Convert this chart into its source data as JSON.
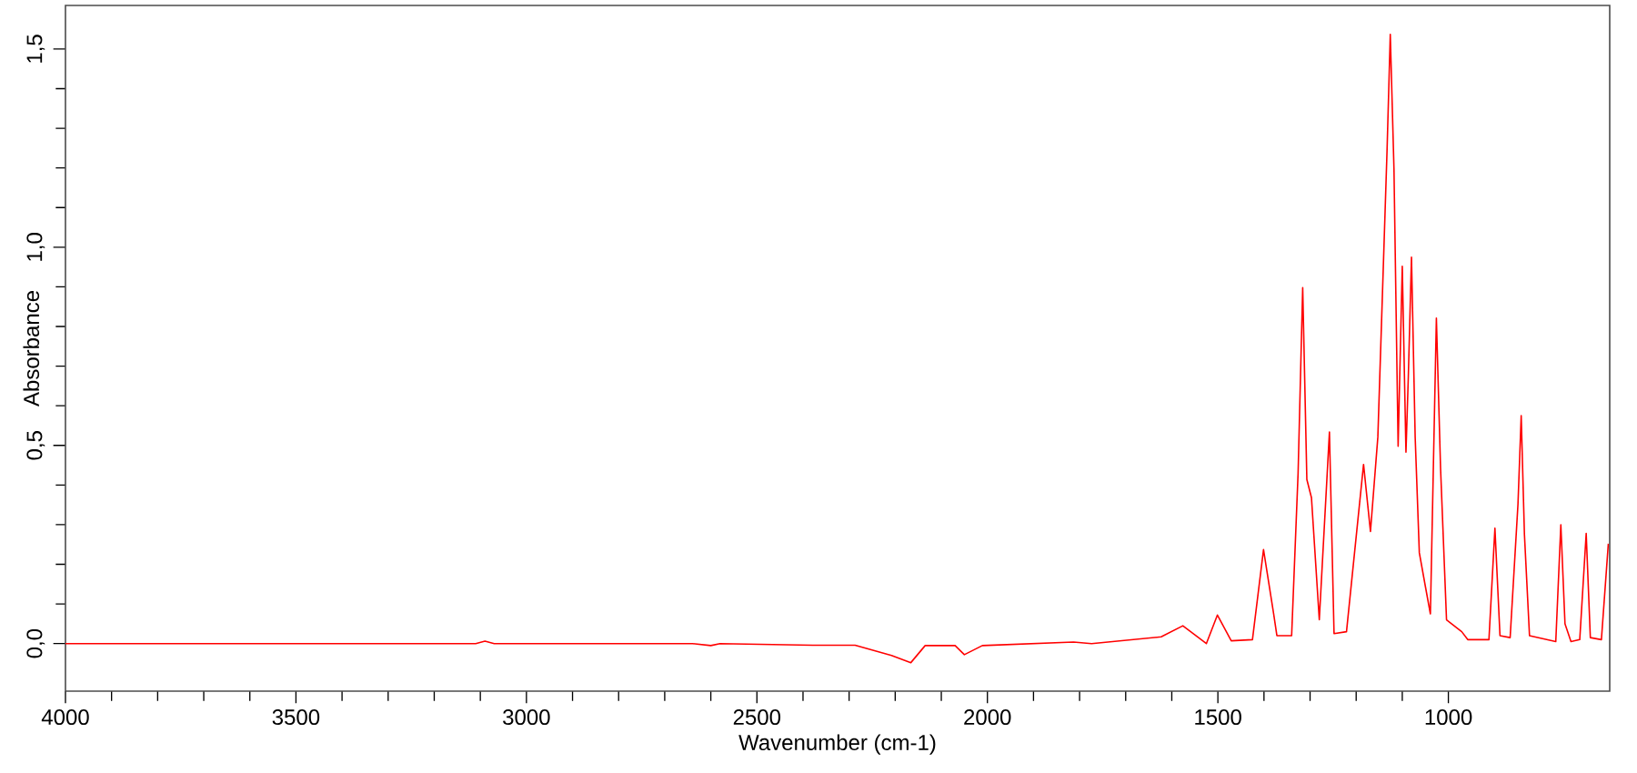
{
  "chart_data": {
    "type": "line",
    "xlabel": "Wavenumber (cm-1)",
    "ylabel": "Absorbance",
    "xlim": [
      4000,
      650
    ],
    "ylim": [
      -0.12,
      1.61
    ],
    "xticks": [
      4000,
      3500,
      3000,
      2500,
      2000,
      1500,
      1000
    ],
    "yticks": [
      {
        "value": 0,
        "label": "0,0"
      },
      {
        "value": 0.5,
        "label": "0,5"
      },
      {
        "value": 1.0,
        "label": "1,0"
      },
      {
        "value": 1.5,
        "label": "1,5"
      }
    ],
    "grid": false,
    "marker": "none",
    "line_style": "solid",
    "series": [
      {
        "color": "#ff0000",
        "x": [
          4000,
          3110,
          3090,
          3070,
          2640,
          2600,
          2580,
          2379,
          2287,
          2208,
          2166,
          2135,
          2070,
          2050,
          2011,
          1813,
          1774,
          1623,
          1576,
          1525,
          1501,
          1471,
          1425,
          1401,
          1379,
          1372,
          1340,
          1326,
          1316,
          1307,
          1297,
          1280,
          1258,
          1248,
          1221,
          1184,
          1169,
          1153,
          1133,
          1126,
          1118,
          1109,
          1100,
          1092,
          1087,
          1080,
          1072,
          1063,
          1050,
          1039,
          1026,
          1017,
          1004,
          971,
          958,
          912,
          899,
          888,
          866,
          849,
          842,
          835,
          824,
          767,
          756,
          747,
          734,
          715,
          701,
          692,
          668,
          653
        ],
        "values": [
          0,
          0,
          0.006,
          0,
          0,
          -0.005,
          0,
          -0.004,
          -0.004,
          -0.03,
          -0.048,
          -0.005,
          -0.005,
          -0.028,
          -0.005,
          0.004,
          0,
          0.017,
          0.045,
          0,
          0.072,
          0.007,
          0.01,
          0.237,
          0.075,
          0.02,
          0.02,
          0.43,
          0.898,
          0.414,
          0.368,
          0.06,
          0.534,
          0.025,
          0.03,
          0.452,
          0.283,
          0.521,
          1.245,
          1.537,
          1.198,
          0.498,
          0.952,
          0.483,
          0.668,
          0.975,
          0.521,
          0.229,
          0.145,
          0.075,
          0.821,
          0.444,
          0.06,
          0.03,
          0.01,
          0.01,
          0.291,
          0.02,
          0.015,
          0.352,
          0.575,
          0.276,
          0.02,
          0.005,
          0.3,
          0.05,
          0.005,
          0.01,
          0.278,
          0.015,
          0.01,
          0.252
        ]
      }
    ]
  }
}
